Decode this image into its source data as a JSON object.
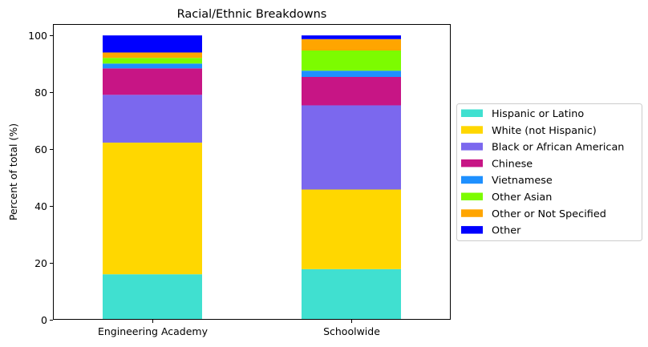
{
  "chart_data": {
    "type": "bar",
    "stacked": true,
    "title": "Racial/Ethnic Breakdowns",
    "xlabel": "",
    "ylabel": "Percent of total (%)",
    "ylim": [
      0,
      104
    ],
    "yticks": [
      0,
      20,
      40,
      60,
      80,
      100
    ],
    "grid": false,
    "legend_position": "right",
    "categories": [
      "Engineering Academy",
      "Schoolwide"
    ],
    "series": [
      {
        "name": "Hispanic or Latino",
        "color": "#40E0D0",
        "values": [
          16.0,
          17.8
        ]
      },
      {
        "name": "White (not Hispanic)",
        "color": "#FFD700",
        "values": [
          46.3,
          28.0
        ]
      },
      {
        "name": "Black or African American",
        "color": "#7B68EE",
        "values": [
          16.8,
          29.6
        ]
      },
      {
        "name": "Chinese",
        "color": "#C71585",
        "values": [
          9.3,
          10.0
        ]
      },
      {
        "name": "Vietnamese",
        "color": "#1E90FF",
        "values": [
          1.7,
          2.2
        ]
      },
      {
        "name": "Other Asian",
        "color": "#7CFC00",
        "values": [
          2.0,
          7.1
        ]
      },
      {
        "name": "Other or Not Specified",
        "color": "#FFA500",
        "values": [
          1.9,
          4.0
        ]
      },
      {
        "name": "Other",
        "color": "#0000FF",
        "values": [
          6.0,
          1.3
        ]
      }
    ]
  }
}
